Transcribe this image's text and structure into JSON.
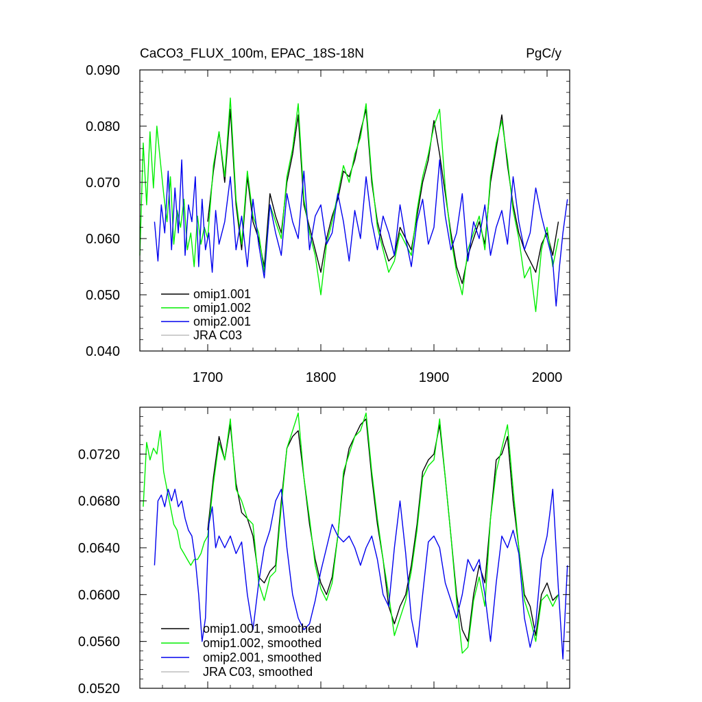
{
  "chart_data": [
    {
      "type": "line",
      "title": "CaCO3_FLUX_100m, EPAC_18S-18N",
      "units": "PgC/y",
      "xlim": [
        1640,
        2020
      ],
      "ylim": [
        0.04,
        0.09
      ],
      "x_ticks": [
        1700,
        1800,
        1900,
        2000
      ],
      "x_tick_labels": [
        "1700",
        "1800",
        "1900",
        "2000"
      ],
      "y_ticks": [
        0.04,
        0.05,
        0.06,
        0.07,
        0.08,
        0.09
      ],
      "y_tick_labels": [
        "0.040",
        "0.050",
        "0.060",
        "0.070",
        "0.080",
        "0.090"
      ],
      "legend": [
        "omip1.001",
        "omip1.002",
        "omip2.001",
        "JRA C03"
      ],
      "series": [
        {
          "name": "omip1.001",
          "color": "#000000",
          "x": [
            1700,
            1705,
            1710,
            1715,
            1720,
            1725,
            1730,
            1735,
            1740,
            1745,
            1750,
            1755,
            1760,
            1765,
            1770,
            1775,
            1780,
            1785,
            1790,
            1795,
            1800,
            1805,
            1810,
            1815,
            1820,
            1825,
            1830,
            1835,
            1840,
            1845,
            1850,
            1855,
            1860,
            1865,
            1870,
            1875,
            1880,
            1885,
            1890,
            1895,
            1900,
            1905,
            1910,
            1915,
            1920,
            1925,
            1930,
            1935,
            1940,
            1945,
            1950,
            1955,
            1960,
            1965,
            1970,
            1975,
            1980,
            1985,
            1990,
            1995,
            2000,
            2005,
            2010
          ],
          "y": [
            0.063,
            0.072,
            0.079,
            0.07,
            0.083,
            0.066,
            0.058,
            0.071,
            0.063,
            0.06,
            0.055,
            0.068,
            0.064,
            0.061,
            0.07,
            0.075,
            0.082,
            0.066,
            0.062,
            0.058,
            0.054,
            0.06,
            0.064,
            0.067,
            0.072,
            0.071,
            0.074,
            0.079,
            0.083,
            0.07,
            0.063,
            0.059,
            0.056,
            0.057,
            0.062,
            0.06,
            0.058,
            0.064,
            0.07,
            0.074,
            0.081,
            0.075,
            0.068,
            0.061,
            0.055,
            0.052,
            0.057,
            0.06,
            0.063,
            0.059,
            0.07,
            0.076,
            0.082,
            0.073,
            0.066,
            0.061,
            0.058,
            0.056,
            0.054,
            0.059,
            0.061,
            0.057,
            0.063
          ]
        },
        {
          "name": "omip1.002",
          "color": "#00ee00",
          "x": [
            1640,
            1643,
            1646,
            1649,
            1652,
            1655,
            1658,
            1661,
            1664,
            1667,
            1670,
            1673,
            1676,
            1679,
            1682,
            1685,
            1688,
            1691,
            1694,
            1697,
            1700,
            1705,
            1710,
            1715,
            1720,
            1725,
            1730,
            1735,
            1740,
            1745,
            1750,
            1755,
            1760,
            1765,
            1770,
            1775,
            1780,
            1785,
            1790,
            1795,
            1800,
            1805,
            1810,
            1815,
            1820,
            1825,
            1830,
            1835,
            1840,
            1845,
            1850,
            1855,
            1860,
            1865,
            1870,
            1875,
            1880,
            1885,
            1890,
            1895,
            1900,
            1905,
            1910,
            1915,
            1920,
            1925,
            1930,
            1935,
            1940,
            1945,
            1950,
            1955,
            1960,
            1965,
            1970,
            1975,
            1980,
            1985,
            1990,
            1995,
            2000,
            2005,
            2010
          ],
          "y": [
            0.057,
            0.077,
            0.066,
            0.079,
            0.069,
            0.08,
            0.074,
            0.068,
            0.063,
            0.071,
            0.059,
            0.065,
            0.062,
            0.067,
            0.058,
            0.061,
            0.055,
            0.064,
            0.059,
            0.062,
            0.06,
            0.073,
            0.079,
            0.071,
            0.085,
            0.067,
            0.059,
            0.072,
            0.064,
            0.061,
            0.054,
            0.066,
            0.063,
            0.06,
            0.071,
            0.076,
            0.084,
            0.067,
            0.061,
            0.057,
            0.05,
            0.059,
            0.063,
            0.068,
            0.073,
            0.07,
            0.075,
            0.078,
            0.084,
            0.071,
            0.062,
            0.058,
            0.054,
            0.056,
            0.061,
            0.059,
            0.057,
            0.065,
            0.071,
            0.075,
            0.08,
            0.083,
            0.069,
            0.06,
            0.054,
            0.05,
            0.058,
            0.061,
            0.064,
            0.058,
            0.071,
            0.077,
            0.081,
            0.074,
            0.065,
            0.06,
            0.053,
            0.055,
            0.047,
            0.058,
            0.062,
            0.055,
            0.06
          ]
        },
        {
          "name": "omip2.001",
          "color": "#0000ee",
          "x": [
            1653,
            1656,
            1659,
            1662,
            1665,
            1668,
            1671,
            1674,
            1677,
            1680,
            1683,
            1686,
            1689,
            1692,
            1695,
            1698,
            1701,
            1704,
            1707,
            1710,
            1715,
            1720,
            1725,
            1730,
            1735,
            1740,
            1745,
            1750,
            1755,
            1760,
            1765,
            1770,
            1775,
            1780,
            1785,
            1790,
            1795,
            1800,
            1805,
            1810,
            1815,
            1820,
            1825,
            1830,
            1835,
            1840,
            1845,
            1850,
            1855,
            1860,
            1865,
            1870,
            1875,
            1880,
            1885,
            1890,
            1895,
            1900,
            1905,
            1910,
            1915,
            1920,
            1925,
            1930,
            1935,
            1940,
            1945,
            1950,
            1955,
            1960,
            1965,
            1970,
            1975,
            1980,
            1985,
            1990,
            1995,
            2000,
            2005,
            2008,
            2011,
            2014,
            2018
          ],
          "y": [
            0.063,
            0.056,
            0.066,
            0.061,
            0.072,
            0.058,
            0.069,
            0.061,
            0.074,
            0.057,
            0.066,
            0.063,
            0.071,
            0.055,
            0.067,
            0.058,
            0.061,
            0.054,
            0.065,
            0.059,
            0.063,
            0.071,
            0.058,
            0.064,
            0.055,
            0.067,
            0.059,
            0.053,
            0.066,
            0.061,
            0.057,
            0.068,
            0.063,
            0.06,
            0.072,
            0.058,
            0.064,
            0.066,
            0.059,
            0.061,
            0.068,
            0.063,
            0.056,
            0.065,
            0.06,
            0.071,
            0.063,
            0.058,
            0.064,
            0.061,
            0.057,
            0.066,
            0.06,
            0.055,
            0.063,
            0.067,
            0.059,
            0.062,
            0.074,
            0.064,
            0.058,
            0.061,
            0.068,
            0.056,
            0.063,
            0.06,
            0.066,
            0.057,
            0.062,
            0.065,
            0.059,
            0.071,
            0.063,
            0.058,
            0.061,
            0.069,
            0.064,
            0.06,
            0.056,
            0.048,
            0.055,
            0.061,
            0.067
          ]
        },
        {
          "name": "JRA C03",
          "color": "#bdbdbd",
          "x": [],
          "y": []
        }
      ]
    },
    {
      "type": "line",
      "title": "",
      "xlim": [
        1640,
        2020
      ],
      "ylim": [
        0.052,
        0.076
      ],
      "x_ticks": [
        1700,
        1800,
        1900,
        2000
      ],
      "y_ticks": [
        0.052,
        0.056,
        0.06,
        0.064,
        0.068,
        0.072
      ],
      "y_tick_labels": [
        "0.0520",
        "0.0560",
        "0.0600",
        "0.0640",
        "0.0680",
        "0.0720"
      ],
      "legend": [
        "omip1.001, smoothed",
        "omip1.002, smoothed",
        "omip2.001, smoothed",
        "JRA C03, smoothed"
      ],
      "series": [
        {
          "name": "omip1.001, smoothed",
          "color": "#000000",
          "x": [
            1700,
            1705,
            1710,
            1715,
            1720,
            1725,
            1730,
            1735,
            1740,
            1745,
            1750,
            1755,
            1760,
            1765,
            1770,
            1775,
            1780,
            1785,
            1790,
            1795,
            1800,
            1805,
            1810,
            1815,
            1820,
            1825,
            1830,
            1835,
            1840,
            1845,
            1850,
            1855,
            1860,
            1865,
            1870,
            1875,
            1880,
            1885,
            1890,
            1895,
            1900,
            1905,
            1910,
            1915,
            1920,
            1925,
            1930,
            1935,
            1940,
            1945,
            1950,
            1955,
            1960,
            1965,
            1970,
            1975,
            1980,
            1985,
            1990,
            1995,
            2000,
            2005,
            2010
          ],
          "y": [
            0.0655,
            0.07,
            0.0735,
            0.0715,
            0.0745,
            0.0695,
            0.067,
            0.0665,
            0.065,
            0.0615,
            0.061,
            0.062,
            0.0625,
            0.068,
            0.0725,
            0.0735,
            0.074,
            0.07,
            0.066,
            0.063,
            0.061,
            0.06,
            0.0615,
            0.065,
            0.07,
            0.0725,
            0.0735,
            0.0745,
            0.075,
            0.07,
            0.066,
            0.063,
            0.059,
            0.0575,
            0.059,
            0.06,
            0.0625,
            0.066,
            0.0705,
            0.0715,
            0.072,
            0.0745,
            0.07,
            0.065,
            0.06,
            0.057,
            0.056,
            0.06,
            0.0625,
            0.061,
            0.0665,
            0.0715,
            0.072,
            0.0735,
            0.068,
            0.064,
            0.06,
            0.059,
            0.0565,
            0.06,
            0.061,
            0.0595,
            0.06
          ]
        },
        {
          "name": "omip1.002, smoothed",
          "color": "#00ee00",
          "x": [
            1643,
            1646,
            1649,
            1652,
            1655,
            1658,
            1661,
            1664,
            1667,
            1670,
            1673,
            1676,
            1679,
            1682,
            1685,
            1688,
            1691,
            1694,
            1697,
            1700,
            1705,
            1710,
            1715,
            1720,
            1725,
            1730,
            1735,
            1740,
            1745,
            1750,
            1755,
            1760,
            1765,
            1770,
            1775,
            1780,
            1785,
            1790,
            1795,
            1800,
            1805,
            1810,
            1815,
            1820,
            1825,
            1830,
            1835,
            1840,
            1845,
            1850,
            1855,
            1860,
            1865,
            1870,
            1875,
            1880,
            1885,
            1890,
            1895,
            1900,
            1905,
            1910,
            1915,
            1920,
            1925,
            1930,
            1935,
            1940,
            1945,
            1950,
            1955,
            1960,
            1965,
            1970,
            1975,
            1980,
            1985,
            1990,
            1995,
            2000,
            2005,
            2010
          ],
          "y": [
            0.0675,
            0.073,
            0.0715,
            0.0725,
            0.072,
            0.074,
            0.0705,
            0.069,
            0.0675,
            0.066,
            0.0655,
            0.064,
            0.0635,
            0.063,
            0.0625,
            0.063,
            0.063,
            0.0635,
            0.0645,
            0.065,
            0.0695,
            0.073,
            0.0715,
            0.075,
            0.069,
            0.068,
            0.0665,
            0.066,
            0.061,
            0.0595,
            0.0615,
            0.062,
            0.0675,
            0.0725,
            0.074,
            0.0755,
            0.07,
            0.0665,
            0.0625,
            0.0605,
            0.0595,
            0.061,
            0.065,
            0.0705,
            0.072,
            0.0735,
            0.074,
            0.0755,
            0.0705,
            0.0665,
            0.063,
            0.06,
            0.0565,
            0.058,
            0.0595,
            0.062,
            0.0655,
            0.07,
            0.071,
            0.0715,
            0.075,
            0.07,
            0.065,
            0.0595,
            0.055,
            0.0555,
            0.0595,
            0.0615,
            0.059,
            0.0665,
            0.0705,
            0.0725,
            0.0745,
            0.069,
            0.064,
            0.0595,
            0.058,
            0.056,
            0.0595,
            0.06,
            0.059,
            0.06
          ]
        },
        {
          "name": "omip2.001, smoothed",
          "color": "#0000ee",
          "x": [
            1653,
            1656,
            1659,
            1662,
            1665,
            1668,
            1671,
            1674,
            1677,
            1680,
            1683,
            1686,
            1689,
            1692,
            1695,
            1698,
            1701,
            1704,
            1707,
            1710,
            1715,
            1720,
            1725,
            1730,
            1735,
            1740,
            1745,
            1750,
            1755,
            1760,
            1765,
            1770,
            1775,
            1780,
            1785,
            1790,
            1795,
            1800,
            1805,
            1810,
            1815,
            1820,
            1825,
            1830,
            1835,
            1840,
            1845,
            1850,
            1855,
            1860,
            1865,
            1870,
            1875,
            1880,
            1885,
            1890,
            1895,
            1900,
            1905,
            1910,
            1915,
            1920,
            1925,
            1930,
            1935,
            1940,
            1945,
            1950,
            1955,
            1960,
            1965,
            1970,
            1975,
            1980,
            1985,
            1990,
            1995,
            2000,
            2005,
            2010,
            2014,
            2018
          ],
          "y": [
            0.0625,
            0.068,
            0.0685,
            0.0675,
            0.069,
            0.068,
            0.069,
            0.0675,
            0.068,
            0.0665,
            0.0655,
            0.065,
            0.063,
            0.06,
            0.056,
            0.058,
            0.066,
            0.0675,
            0.064,
            0.065,
            0.064,
            0.065,
            0.0635,
            0.0645,
            0.06,
            0.057,
            0.061,
            0.064,
            0.0655,
            0.068,
            0.069,
            0.064,
            0.06,
            0.058,
            0.057,
            0.0575,
            0.0595,
            0.062,
            0.064,
            0.066,
            0.065,
            0.0645,
            0.065,
            0.064,
            0.0625,
            0.064,
            0.065,
            0.063,
            0.06,
            0.059,
            0.064,
            0.068,
            0.0635,
            0.058,
            0.0555,
            0.06,
            0.0645,
            0.065,
            0.064,
            0.061,
            0.0595,
            0.058,
            0.06,
            0.063,
            0.062,
            0.063,
            0.06,
            0.056,
            0.061,
            0.065,
            0.064,
            0.0655,
            0.0635,
            0.058,
            0.0555,
            0.0575,
            0.063,
            0.065,
            0.069,
            0.0605,
            0.0545,
            0.0625
          ]
        },
        {
          "name": "JRA C03, smoothed",
          "color": "#bdbdbd",
          "x": [],
          "y": []
        }
      ]
    }
  ]
}
